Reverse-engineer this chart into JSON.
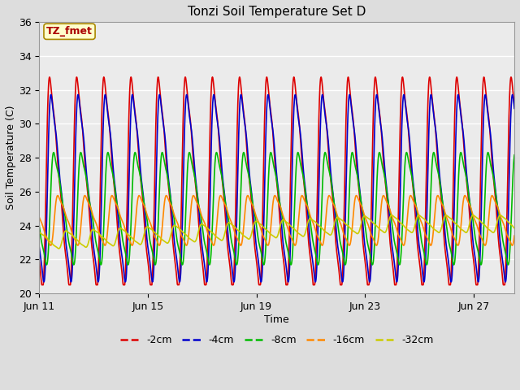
{
  "title": "Tonzi Soil Temperature Set D",
  "xlabel": "Time",
  "ylabel": "Soil Temperature (C)",
  "ylim": [
    20,
    36
  ],
  "xlim_days": [
    0,
    17.5
  ],
  "bg_color": "#dddddd",
  "plot_bg": "#ebebeb",
  "annotation_text": "TZ_fmet",
  "annotation_bg": "#ffffcc",
  "annotation_border": "#aa8800",
  "annotation_fg": "#aa0000",
  "series_colors": [
    "#dd0000",
    "#0000cc",
    "#00bb00",
    "#ff8800",
    "#cccc00"
  ],
  "series_labels": [
    "-2cm",
    "-4cm",
    "-8cm",
    "-16cm",
    "-32cm"
  ],
  "xtick_labels": [
    "Jun 11",
    "Jun 15",
    "Jun 19",
    "Jun 23",
    "Jun 27"
  ],
  "xtick_positions": [
    0,
    4,
    8,
    12,
    16
  ],
  "ytick_positions": [
    20,
    22,
    24,
    26,
    28,
    30,
    32,
    34,
    36
  ],
  "figsize": [
    6.4,
    4.8
  ],
  "dpi": 100
}
